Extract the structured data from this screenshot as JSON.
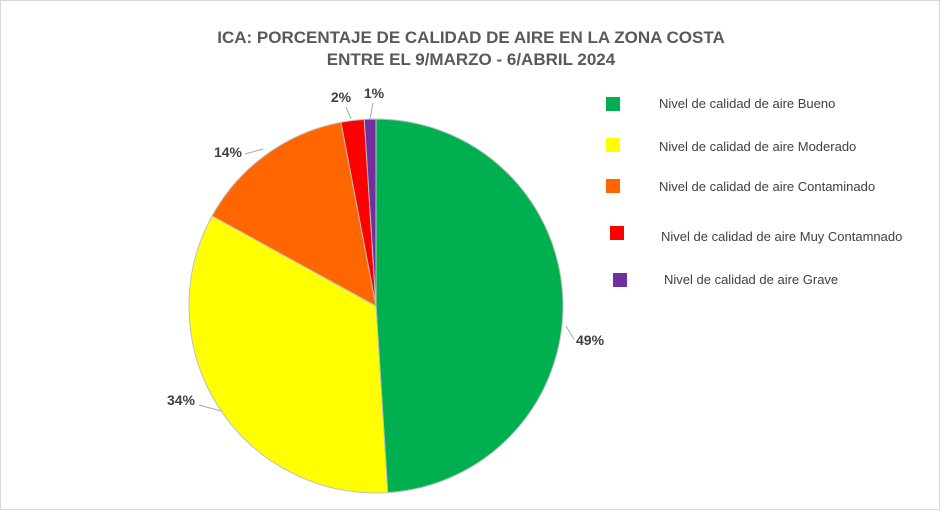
{
  "chart_data": {
    "type": "pie",
    "title_lines": [
      "ICA: PORCENTAJE DE CALIDAD DE AIRE EN LA ZONA COSTA",
      "ENTRE EL 9/MARZO - 6/ABRIL 2024"
    ],
    "slices": [
      {
        "name": "Nivel de calidad de aire Bueno",
        "value": 49,
        "label": "49%",
        "color": "#00b050"
      },
      {
        "name": "Nivel de calidad de aire Moderado",
        "value": 34,
        "label": "34%",
        "color": "#ffff00"
      },
      {
        "name": "Nivel de calidad de aire Contaminado",
        "value": 14,
        "label": "14%",
        "color": "#ff6600"
      },
      {
        "name": "Nivel de calidad de aire Muy Contamnado",
        "value": 2,
        "label": "2%",
        "color": "#ff0000"
      },
      {
        "name": "Nivel de calidad de aire Grave",
        "value": 1,
        "label": "1%",
        "color": "#7030a0"
      }
    ],
    "legend_position": "right"
  }
}
